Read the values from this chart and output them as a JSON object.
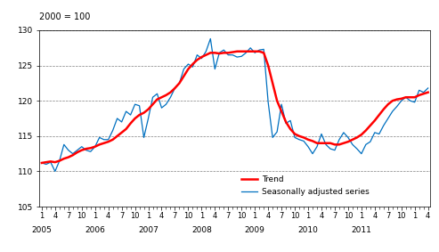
{
  "title": "2000 = 100",
  "ylim": [
    105,
    130
  ],
  "yticks": [
    105,
    110,
    115,
    120,
    125,
    130
  ],
  "figsize": [
    4.93,
    2.83
  ],
  "dpi": 100,
  "trend_color": "#FF0000",
  "seasonal_color": "#0070C0",
  "trend_linewidth": 1.8,
  "seasonal_linewidth": 0.9,
  "background_color": "#FFFFFF",
  "grid_color": "#808080",
  "legend_trend": "Trend",
  "legend_seasonal": "Seasonally adjusted series",
  "seasonal_data": [
    111.2,
    111.0,
    111.3,
    110.0,
    111.5,
    113.8,
    113.0,
    112.5,
    113.0,
    113.5,
    113.0,
    112.8,
    113.5,
    114.8,
    114.5,
    114.5,
    115.8,
    117.5,
    117.0,
    118.5,
    118.0,
    119.5,
    119.3,
    114.8,
    117.5,
    120.5,
    121.0,
    119.0,
    119.5,
    120.5,
    121.8,
    122.5,
    124.5,
    125.2,
    124.8,
    126.5,
    126.0,
    127.0,
    128.8,
    124.5,
    126.8,
    127.2,
    126.5,
    126.5,
    126.2,
    126.3,
    126.8,
    127.5,
    126.8,
    127.2,
    127.3,
    119.8,
    114.8,
    115.6,
    119.5,
    116.8,
    117.2,
    114.8,
    114.5,
    114.3,
    113.5,
    112.5,
    113.5,
    115.3,
    113.8,
    113.2,
    113.0,
    114.5,
    115.5,
    114.8,
    113.8,
    113.2,
    112.5,
    113.8,
    114.2,
    115.5,
    115.3,
    116.5,
    117.5,
    118.5,
    119.2,
    120.0,
    120.5,
    120.0,
    119.8,
    121.5,
    121.2,
    121.8
  ],
  "trend_data": [
    111.2,
    111.3,
    111.4,
    111.3,
    111.5,
    111.8,
    112.0,
    112.3,
    112.7,
    113.0,
    113.2,
    113.3,
    113.5,
    113.8,
    114.0,
    114.2,
    114.5,
    115.0,
    115.5,
    116.0,
    116.8,
    117.5,
    118.0,
    118.3,
    118.8,
    119.5,
    120.2,
    120.5,
    120.8,
    121.2,
    121.8,
    122.5,
    123.5,
    124.5,
    125.2,
    125.8,
    126.2,
    126.5,
    126.8,
    126.8,
    126.7,
    126.8,
    126.8,
    126.9,
    127.0,
    127.0,
    127.0,
    127.0,
    127.0,
    127.0,
    126.8,
    125.0,
    122.5,
    120.0,
    118.5,
    117.0,
    116.0,
    115.3,
    115.0,
    114.8,
    114.5,
    114.3,
    114.0,
    114.0,
    114.0,
    114.0,
    113.8,
    113.8,
    114.0,
    114.2,
    114.5,
    114.8,
    115.2,
    115.8,
    116.5,
    117.2,
    118.0,
    118.8,
    119.5,
    120.0,
    120.2,
    120.3,
    120.5,
    120.5,
    120.5,
    120.8,
    121.0,
    121.2
  ],
  "x_month_major_pos": [
    0,
    3,
    6,
    9,
    12,
    15,
    18,
    21,
    24,
    27,
    30,
    33,
    36,
    39,
    42,
    45,
    48,
    51,
    54,
    57,
    60,
    63,
    66,
    69,
    72,
    75,
    78,
    81,
    84,
    87
  ],
  "x_month_major_labels": [
    "1",
    "4",
    "7",
    "10",
    "1",
    "4",
    "7",
    "10",
    "1",
    "4",
    "7",
    "10",
    "1",
    "4",
    "7",
    "10",
    "1",
    "4",
    "7",
    "10",
    "1",
    "4",
    "7",
    "10",
    "1",
    "4",
    "7",
    "10",
    "1",
    "4"
  ],
  "x_year_pos": [
    0,
    12,
    24,
    36,
    48,
    60,
    72
  ],
  "x_year_labels": [
    "2005",
    "2006",
    "2007",
    "2008",
    "2009",
    "2010",
    "2011"
  ]
}
